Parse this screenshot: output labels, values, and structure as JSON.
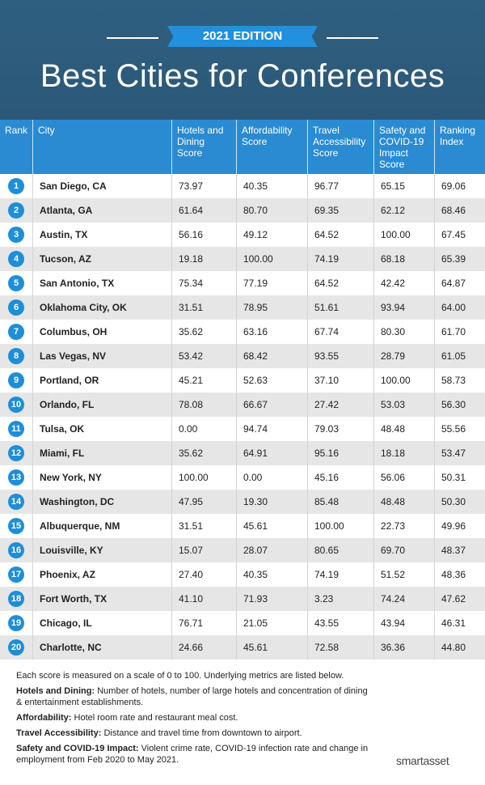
{
  "header": {
    "edition": "2021 EDITION",
    "title": "Best Cities for Conferences"
  },
  "table": {
    "columns": [
      "Rank",
      "City",
      "Hotels and Dining Score",
      "Affordability Score",
      "Travel Accessibility Score",
      "Safety and COVID-19 Impact Score",
      "Ranking Index"
    ],
    "rows": [
      [
        "1",
        "San Diego, CA",
        "73.97",
        "40.35",
        "96.77",
        "65.15",
        "69.06"
      ],
      [
        "2",
        "Atlanta, GA",
        "61.64",
        "80.70",
        "69.35",
        "62.12",
        "68.46"
      ],
      [
        "3",
        "Austin, TX",
        "56.16",
        "49.12",
        "64.52",
        "100.00",
        "67.45"
      ],
      [
        "4",
        "Tucson, AZ",
        "19.18",
        "100.00",
        "74.19",
        "68.18",
        "65.39"
      ],
      [
        "5",
        "San Antonio, TX",
        "75.34",
        "77.19",
        "64.52",
        "42.42",
        "64.87"
      ],
      [
        "6",
        "Oklahoma City, OK",
        "31.51",
        "78.95",
        "51.61",
        "93.94",
        "64.00"
      ],
      [
        "7",
        "Columbus, OH",
        "35.62",
        "63.16",
        "67.74",
        "80.30",
        "61.70"
      ],
      [
        "8",
        "Las Vegas, NV",
        "53.42",
        "68.42",
        "93.55",
        "28.79",
        "61.05"
      ],
      [
        "9",
        "Portland, OR",
        "45.21",
        "52.63",
        "37.10",
        "100.00",
        "58.73"
      ],
      [
        "10",
        "Orlando, FL",
        "78.08",
        "66.67",
        "27.42",
        "53.03",
        "56.30"
      ],
      [
        "11",
        "Tulsa, OK",
        "0.00",
        "94.74",
        "79.03",
        "48.48",
        "55.56"
      ],
      [
        "12",
        "Miami, FL",
        "35.62",
        "64.91",
        "95.16",
        "18.18",
        "53.47"
      ],
      [
        "13",
        "New York, NY",
        "100.00",
        "0.00",
        "45.16",
        "56.06",
        "50.31"
      ],
      [
        "14",
        "Washington, DC",
        "47.95",
        "19.30",
        "85.48",
        "48.48",
        "50.30"
      ],
      [
        "15",
        "Albuquerque, NM",
        "31.51",
        "45.61",
        "100.00",
        "22.73",
        "49.96"
      ],
      [
        "16",
        "Louisville, KY",
        "15.07",
        "28.07",
        "80.65",
        "69.70",
        "48.37"
      ],
      [
        "17",
        "Phoenix, AZ",
        "27.40",
        "40.35",
        "74.19",
        "51.52",
        "48.36"
      ],
      [
        "18",
        "Fort Worth, TX",
        "41.10",
        "71.93",
        "3.23",
        "74.24",
        "47.62"
      ],
      [
        "19",
        "Chicago, IL",
        "76.71",
        "21.05",
        "43.55",
        "43.94",
        "46.31"
      ],
      [
        "20",
        "Charlotte, NC",
        "24.66",
        "45.61",
        "72.58",
        "36.36",
        "44.80"
      ]
    ]
  },
  "notes": {
    "intro": "Each score is measured on a scale of 0 to 100. Underlying metrics are listed below.",
    "items": [
      {
        "label": "Hotels and Dining:",
        "text": "Number of hotels, number of large hotels and concentration of dining & entertainment establishments."
      },
      {
        "label": "Affordability:",
        "text": "Hotel room rate and restaurant meal cost."
      },
      {
        "label": "Travel Accessibility:",
        "text": "Distance and travel time from downtown to airport."
      },
      {
        "label": "Safety and COVID-19 Impact:",
        "text": "Violent crime rate, COVID-19 infection rate and change in employment from Feb 2020 to May 2021."
      }
    ]
  },
  "logo": "smartasset"
}
